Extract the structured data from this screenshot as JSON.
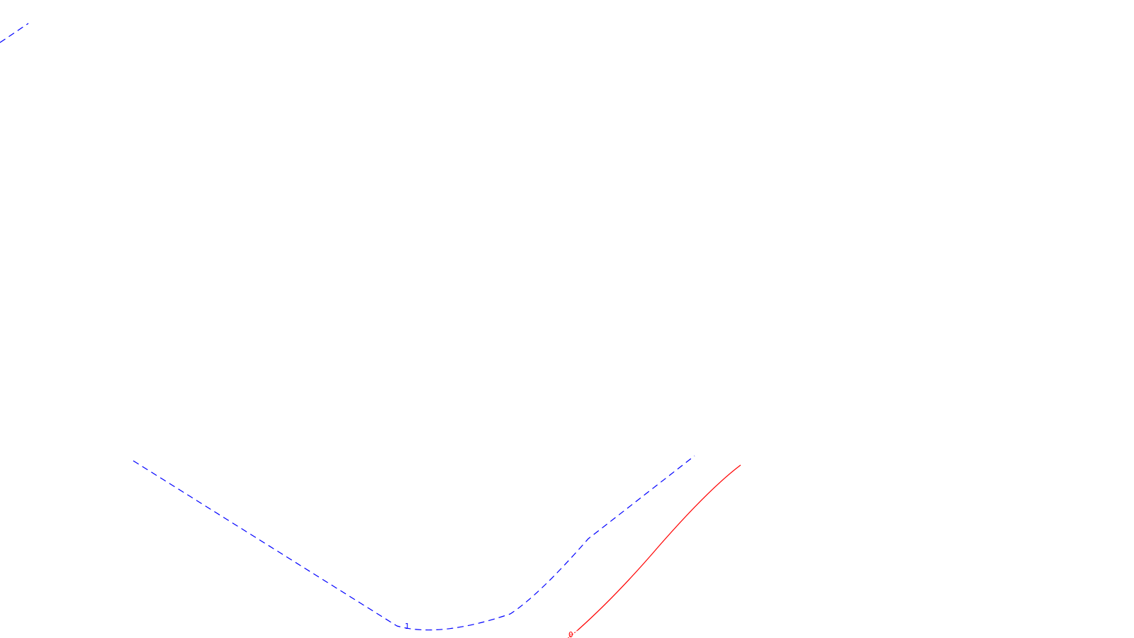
{
  "paths": [
    {
      "id": "path-1",
      "label": "1",
      "color": "#0000ff",
      "style": "dashed"
    },
    {
      "id": "path-0",
      "label": "0",
      "color": "#ff0000",
      "style": "solid"
    }
  ]
}
